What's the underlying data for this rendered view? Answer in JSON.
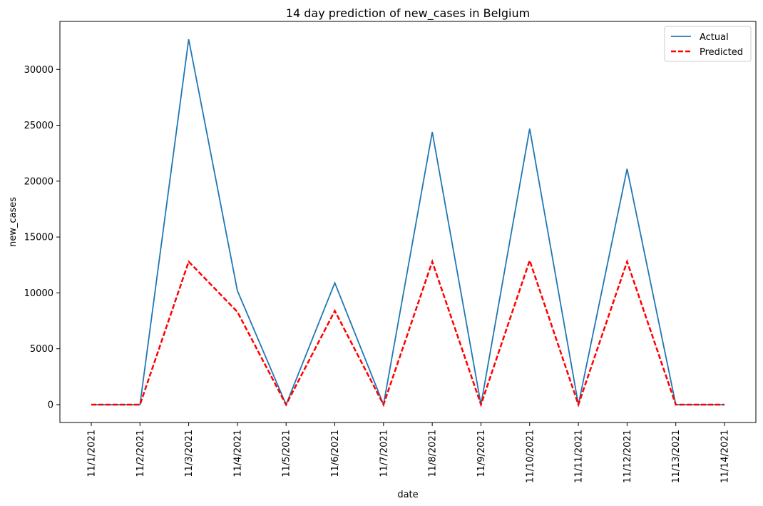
{
  "chart_data": {
    "type": "line",
    "title": "14 day prediction of new_cases in Belgium",
    "xlabel": "date",
    "ylabel": "new_cases",
    "categories": [
      "11/1/2021",
      "11/2/2021",
      "11/3/2021",
      "11/4/2021",
      "11/5/2021",
      "11/6/2021",
      "11/7/2021",
      "11/8/2021",
      "11/9/2021",
      "11/10/2021",
      "11/11/2021",
      "11/12/2021",
      "11/13/2021",
      "11/14/2021"
    ],
    "series": [
      {
        "name": "Actual",
        "color": "#1f77b4",
        "style": "solid",
        "values": [
          0,
          0,
          32700,
          10200,
          0,
          10900,
          0,
          24400,
          0,
          24700,
          0,
          21100,
          0,
          0
        ]
      },
      {
        "name": "Predicted",
        "color": "#ff0000",
        "style": "dashed",
        "values": [
          0,
          0,
          12800,
          8300,
          0,
          8400,
          0,
          12800,
          0,
          12900,
          0,
          12800,
          0,
          0
        ]
      }
    ],
    "ylim": [
      -1600,
      34300
    ],
    "yticks": [
      0,
      5000,
      10000,
      15000,
      20000,
      25000,
      30000
    ],
    "grid": false,
    "legend_position": "top-right"
  }
}
